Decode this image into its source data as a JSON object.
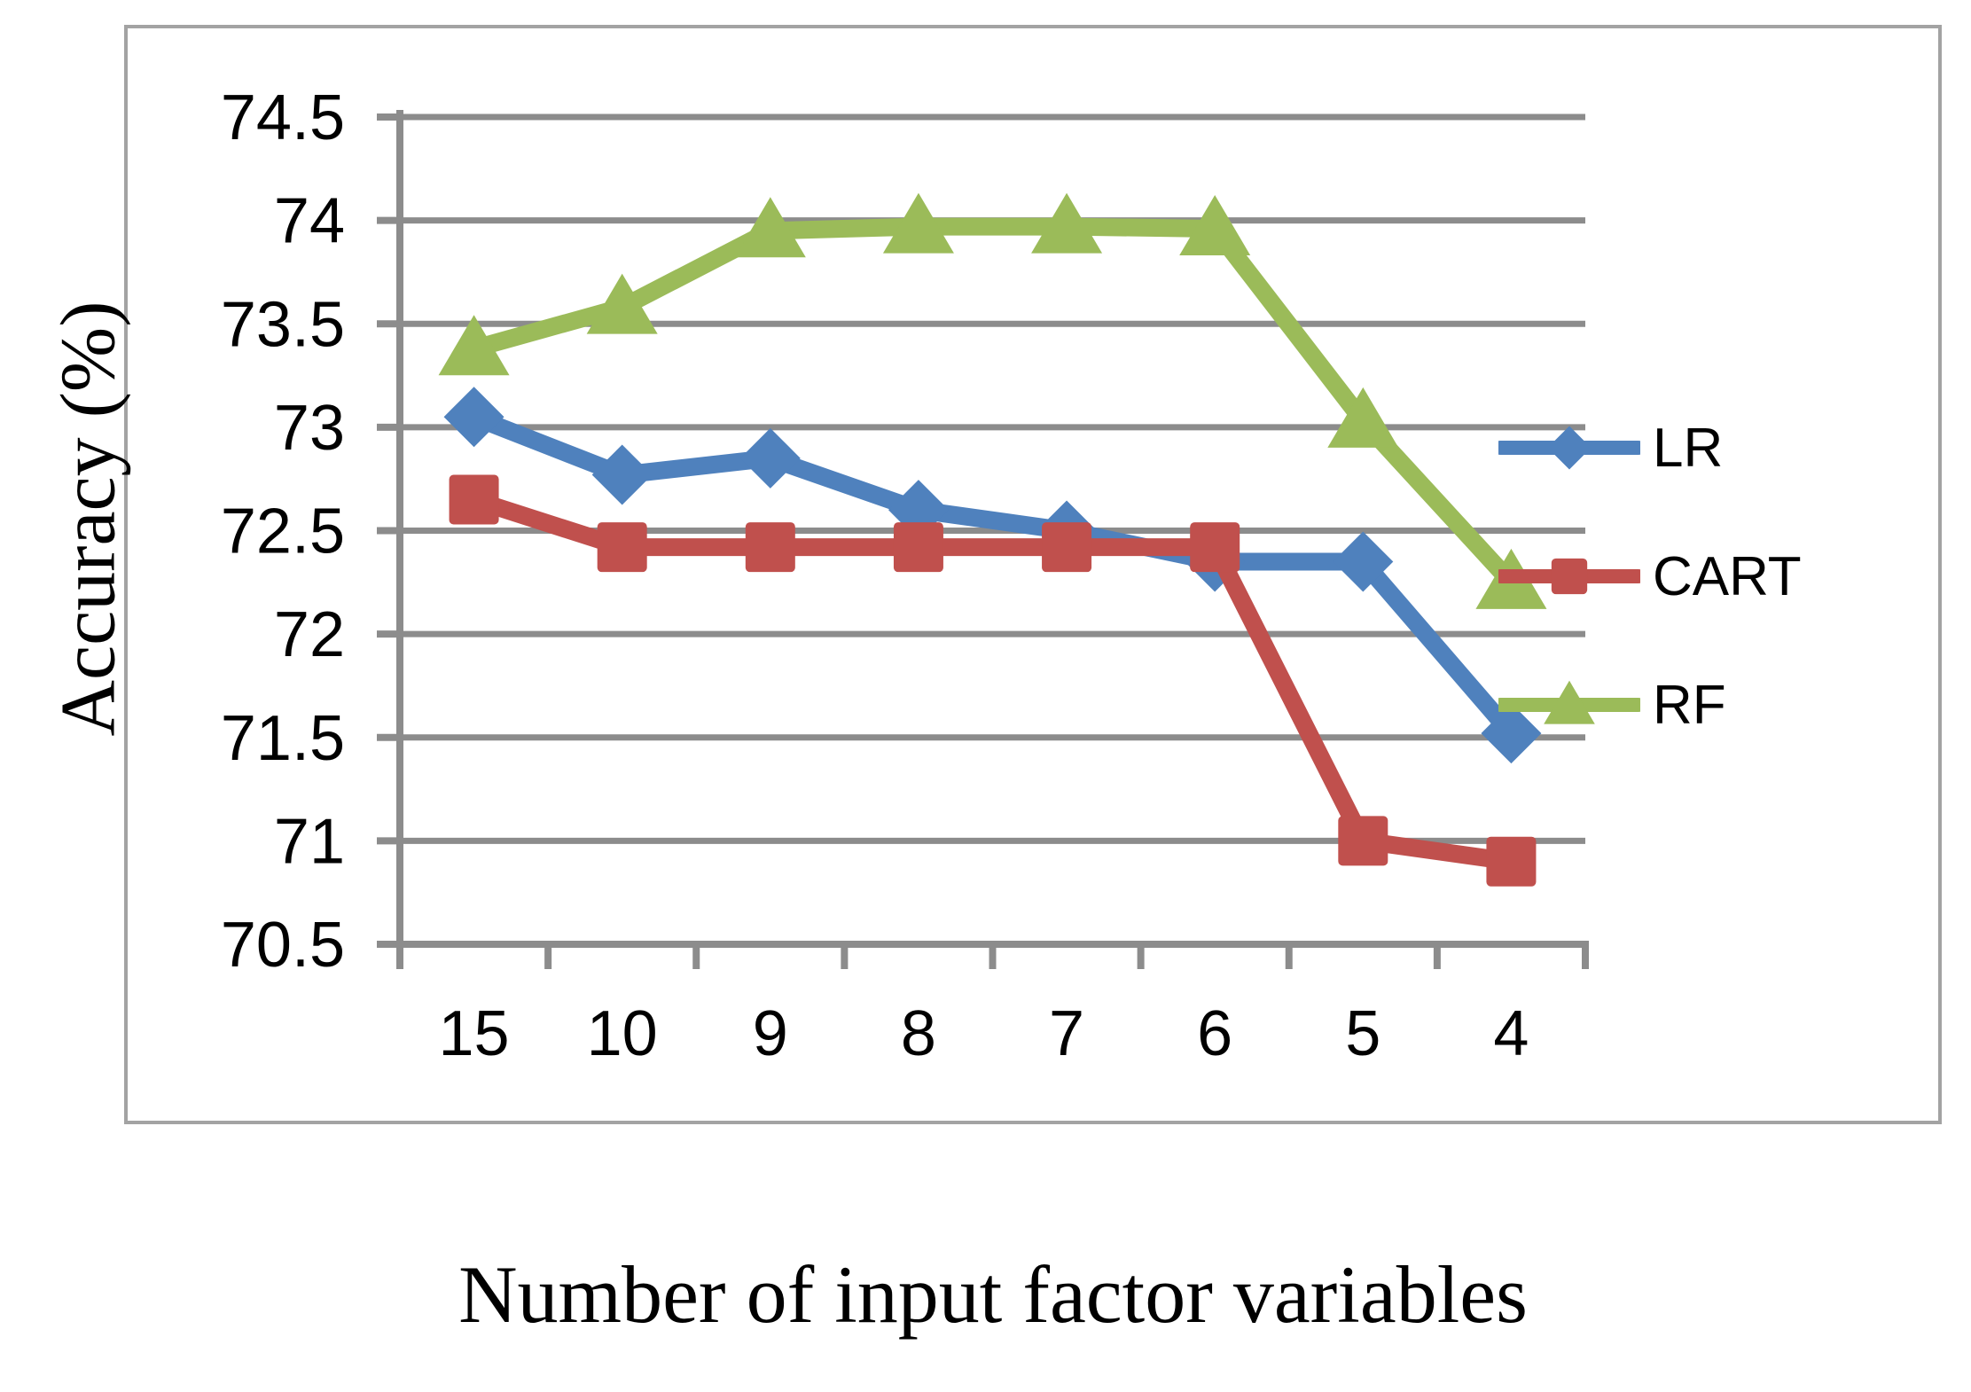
{
  "page": {
    "background": "#ffffff"
  },
  "chart_data": {
    "type": "line",
    "title": "",
    "xlabel": "Number of input factor variables",
    "ylabel": "Accuracy (%)",
    "categories": [
      "15",
      "10",
      "9",
      "8",
      "7",
      "6",
      "5",
      "4"
    ],
    "series": [
      {
        "name": "LR",
        "color": "#4F81BD",
        "marker": "diamond",
        "values": [
          73.05,
          72.77,
          72.85,
          72.6,
          72.5,
          72.35,
          72.35,
          71.52
        ]
      },
      {
        "name": "CART",
        "color": "#C0504D",
        "marker": "square",
        "values": [
          72.65,
          72.42,
          72.42,
          72.42,
          72.42,
          72.42,
          71.0,
          70.9
        ]
      },
      {
        "name": "RF",
        "color": "#9BBB59",
        "marker": "triangle",
        "values": [
          73.38,
          73.58,
          73.95,
          73.97,
          73.97,
          73.96,
          73.03,
          72.25
        ]
      }
    ],
    "ylim": [
      70.5,
      74.5
    ],
    "ytick_step": 0.5,
    "yticks": [
      "74.5",
      "74",
      "73.5",
      "73",
      "72.5",
      "72",
      "71.5",
      "71",
      "70.5"
    ],
    "grid": true,
    "legend_position": "right",
    "gridline_color": "#8C8C8C",
    "axis_color": "#8C8C8C",
    "border_color": "#A3A3A3",
    "text_color": "#000000"
  },
  "legend": {
    "items": [
      {
        "label": "LR"
      },
      {
        "label": "CART"
      },
      {
        "label": "RF"
      }
    ]
  }
}
